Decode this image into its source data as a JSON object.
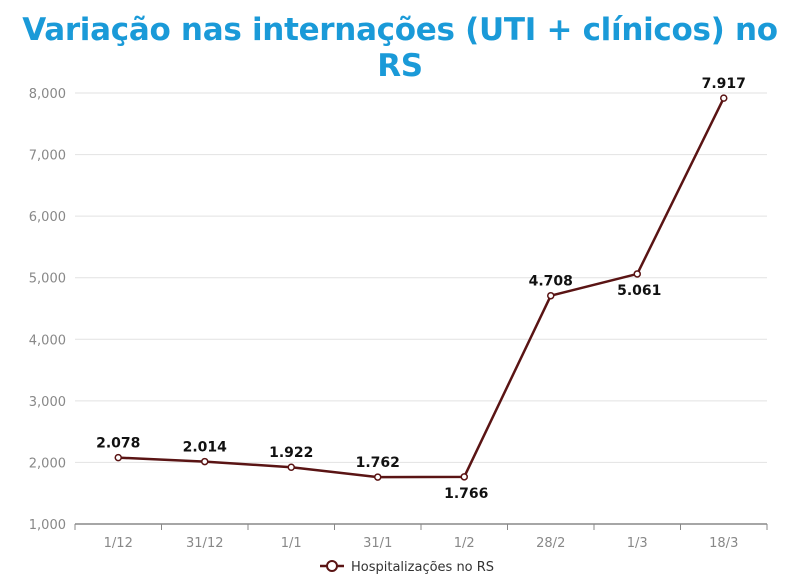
{
  "chart_data": {
    "type": "line",
    "title": "Variação nas internações (UTI + clínicos) no RS",
    "categories": [
      "1/12",
      "31/12",
      "1/1",
      "31/1",
      "1/2",
      "28/2",
      "1/3",
      "18/3"
    ],
    "series": [
      {
        "name": "Hospitalizações no RS",
        "values": [
          2078,
          2014,
          1922,
          1762,
          1766,
          4708,
          5061,
          7917
        ],
        "labels": [
          "2.078",
          "2.014",
          "1.922",
          "1.762",
          "1.766",
          "4.708",
          "5.061",
          "7.917"
        ],
        "color": "#5a1414"
      }
    ],
    "ylim": [
      1000,
      8000
    ],
    "yticks": [
      "1,000",
      "2,000",
      "3,000",
      "4,000",
      "5,000",
      "6,000",
      "7,000",
      "8,000"
    ],
    "grid": true,
    "legend": "bottom",
    "title_color": "#1a9ad8"
  }
}
